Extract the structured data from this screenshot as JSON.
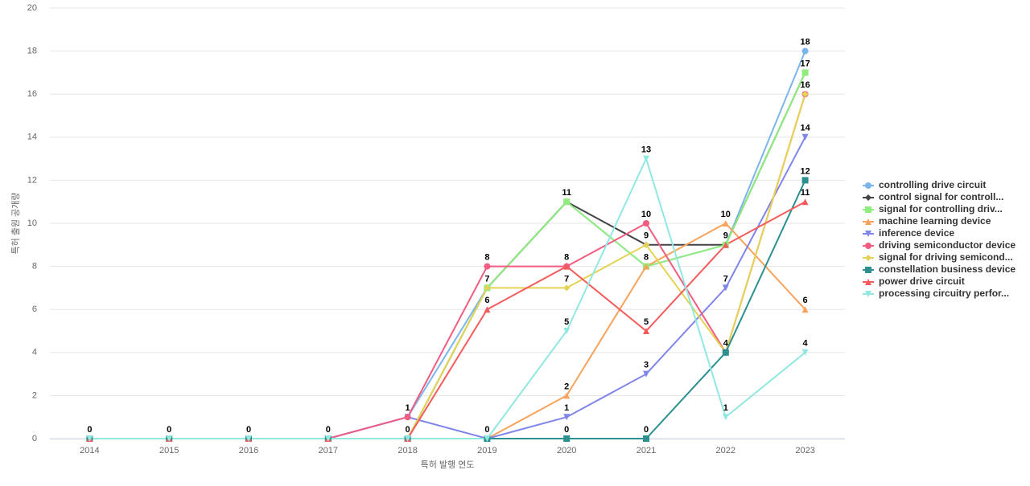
{
  "chart_data": {
    "type": "line",
    "x_label": "특허 발행 연도",
    "y_label": "특허 출원 공개량",
    "categories": [
      "2014",
      "2015",
      "2016",
      "2017",
      "2018",
      "2019",
      "2020",
      "2021",
      "2022",
      "2023"
    ],
    "ylim": [
      0,
      20
    ],
    "yticks": [
      0,
      2,
      4,
      6,
      8,
      10,
      12,
      14,
      16,
      18,
      20
    ],
    "grid": true,
    "legend": "right",
    "series": [
      {
        "name": "controlling drive circuit",
        "color": "#7cb5ec",
        "marker": "circle",
        "values": [
          0,
          0,
          0,
          0,
          1,
          7,
          11,
          8,
          9,
          18
        ]
      },
      {
        "name": "control signal for controll...",
        "color": "#434348",
        "marker": "diamond",
        "values": [
          0,
          0,
          0,
          0,
          0,
          7,
          11,
          9,
          9,
          17
        ]
      },
      {
        "name": "signal for controlling driv...",
        "color": "#90ed7d",
        "marker": "square",
        "values": [
          0,
          0,
          0,
          0,
          0,
          7,
          11,
          8,
          9,
          17
        ]
      },
      {
        "name": "machine learning device",
        "color": "#f7a35c",
        "marker": "triangle",
        "values": [
          0,
          0,
          0,
          0,
          0,
          0,
          2,
          8,
          10,
          6
        ]
      },
      {
        "name": "inference device",
        "color": "#8085e9",
        "marker": "triangle-down",
        "values": [
          0,
          0,
          0,
          0,
          1,
          0,
          1,
          3,
          7,
          14
        ]
      },
      {
        "name": "driving semiconductor device",
        "color": "#f15c80",
        "marker": "circle",
        "values": [
          0,
          0,
          0,
          0,
          1,
          8,
          8,
          10,
          4,
          16
        ]
      },
      {
        "name": "signal for driving semicond...",
        "color": "#e4d354",
        "marker": "diamond",
        "values": [
          0,
          0,
          0,
          0,
          0,
          7,
          7,
          9,
          4,
          16
        ]
      },
      {
        "name": "constellation business device",
        "color": "#2b908f",
        "marker": "square",
        "values": [
          0,
          0,
          0,
          0,
          0,
          0,
          0,
          0,
          4,
          12
        ]
      },
      {
        "name": "power drive circuit",
        "color": "#f45b5b",
        "marker": "triangle",
        "values": [
          0,
          0,
          0,
          0,
          0,
          6,
          8,
          5,
          9,
          11
        ]
      },
      {
        "name": "processing circuitry perfor...",
        "color": "#91e8e1",
        "marker": "triangle-down",
        "values": [
          0,
          0,
          0,
          0,
          0,
          0,
          5,
          13,
          1,
          4
        ]
      }
    ]
  }
}
